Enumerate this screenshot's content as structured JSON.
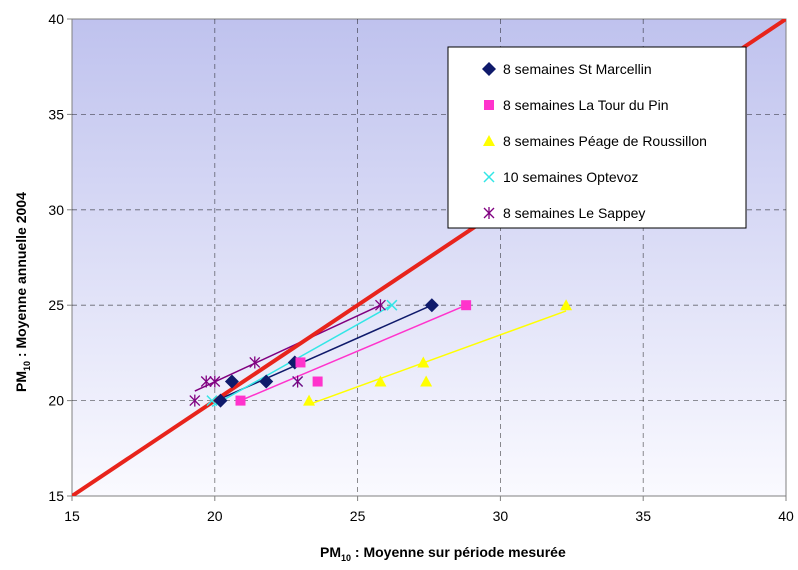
{
  "chart_data": {
    "type": "scatter",
    "xlabel": {
      "main": "PM",
      "sub": "10",
      "rest": " : Moyenne sur période mesurée"
    },
    "ylabel": {
      "main": "PM",
      "sub": "10",
      "rest": " : Moyenne annuelle 2004"
    },
    "xlim": [
      15,
      40
    ],
    "ylim": [
      15,
      40
    ],
    "x_ticks": [
      15,
      20,
      25,
      30,
      35,
      40
    ],
    "y_ticks": [
      15,
      20,
      25,
      30,
      35,
      40
    ],
    "grid": true,
    "legend_position": "top-right",
    "reference_line": {
      "from": [
        15,
        15
      ],
      "to": [
        40,
        40
      ],
      "color": "#e8241c"
    },
    "series": [
      {
        "name": "8 semaines St Marcellin",
        "marker": "diamond",
        "color": "#0f1a6b",
        "points": [
          [
            20.2,
            20.0
          ],
          [
            20.6,
            21.0
          ],
          [
            21.8,
            21.0
          ],
          [
            22.8,
            22.0
          ],
          [
            27.6,
            25.0
          ]
        ],
        "fit": [
          [
            20.2,
            20.1
          ],
          [
            27.6,
            25.0
          ]
        ]
      },
      {
        "name": "8 semaines La Tour du Pin",
        "marker": "square",
        "color": "#ff33cc",
        "points": [
          [
            20.9,
            20.0
          ],
          [
            23.0,
            22.0
          ],
          [
            23.6,
            21.0
          ],
          [
            28.8,
            25.0
          ]
        ],
        "fit": [
          [
            20.9,
            20.0
          ],
          [
            28.8,
            25.0
          ]
        ]
      },
      {
        "name": "8 semaines Péage de Roussillon",
        "marker": "triangle",
        "color": "#ffff00",
        "points": [
          [
            23.3,
            20.0
          ],
          [
            25.8,
            21.0
          ],
          [
            27.3,
            22.0
          ],
          [
            27.4,
            21.0
          ],
          [
            32.3,
            25.0
          ]
        ],
        "fit": [
          [
            23.3,
            19.8
          ],
          [
            32.3,
            24.7
          ]
        ]
      },
      {
        "name": "10 semaines Optevoz",
        "marker": "x",
        "color": "#33e6e6",
        "points": [
          [
            19.9,
            20.0
          ],
          [
            22.9,
            21.0
          ],
          [
            26.2,
            25.0
          ]
        ],
        "fit": [
          [
            19.9,
            19.7
          ],
          [
            26.2,
            25.0
          ]
        ]
      },
      {
        "name": "8 semaines Le Sappey",
        "marker": "star",
        "color": "#800080",
        "points": [
          [
            19.3,
            20.0
          ],
          [
            19.7,
            21.0
          ],
          [
            20.0,
            21.0
          ],
          [
            21.4,
            22.0
          ],
          [
            22.9,
            21.0
          ],
          [
            25.8,
            25.0
          ]
        ],
        "fit": [
          [
            19.3,
            20.5
          ],
          [
            25.8,
            25.0
          ]
        ]
      }
    ]
  }
}
